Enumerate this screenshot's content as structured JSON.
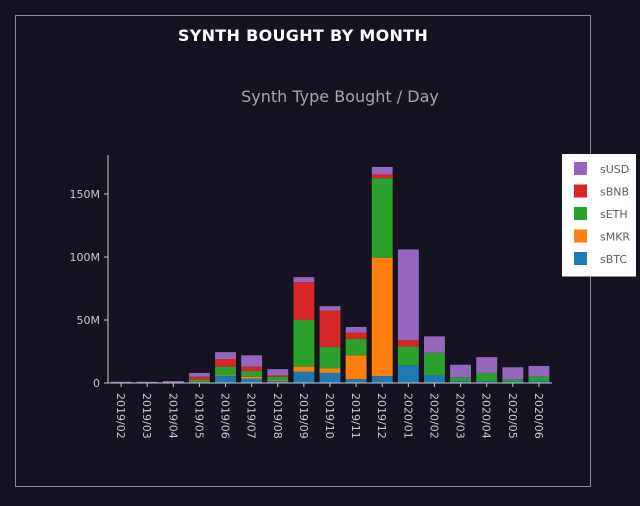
{
  "page": {
    "title": "SYNTH BOUGHT BY MONTH"
  },
  "chart_data": {
    "type": "bar",
    "stacked": true,
    "title": "Synth Type Bought / Day",
    "xlabel": "",
    "ylabel": "",
    "categories": [
      "2019/02",
      "2019/03",
      "2019/04",
      "2019/05",
      "2019/06",
      "2019/07",
      "2019/08",
      "2019/09",
      "2019/10",
      "2019/11",
      "2019/12",
      "2020/01",
      "2020/02",
      "2020/03",
      "2020/04",
      "2020/05",
      "2020/06"
    ],
    "ylim": [
      0,
      180000000
    ],
    "yticks": [
      0,
      50000000,
      100000000,
      150000000
    ],
    "ytick_labels": [
      "0",
      "50M",
      "100M",
      "150M"
    ],
    "grid": false,
    "legend_position": "right",
    "series": [
      {
        "name": "sBTC",
        "color": "#1f77b4",
        "values": [
          0,
          0,
          0,
          1000000,
          5500000,
          3500000,
          1500000,
          9000000,
          8000000,
          3000000,
          5500000,
          14000000,
          6000000,
          1500000,
          1500000,
          1000000,
          1500000
        ]
      },
      {
        "name": "sMKR",
        "color": "#ff7f0e",
        "values": [
          0,
          0,
          0,
          500000,
          500000,
          1500000,
          500000,
          4000000,
          3500000,
          19000000,
          94000000,
          0,
          0,
          0,
          0,
          0,
          0
        ]
      },
      {
        "name": "sETH",
        "color": "#2ca02c",
        "values": [
          0,
          0,
          0,
          1500000,
          7000000,
          4500000,
          3000000,
          37000000,
          17000000,
          13000000,
          63000000,
          15000000,
          18000000,
          3000000,
          6500000,
          2000000,
          3500000
        ]
      },
      {
        "name": "sBNB",
        "color": "#d62728",
        "values": [
          0,
          0,
          0,
          2000000,
          6000000,
          3500000,
          1000000,
          30000000,
          29000000,
          5000000,
          3000000,
          5000000,
          0,
          0,
          0,
          0,
          0
        ]
      },
      {
        "name": "sUSD",
        "color": "#9467bd",
        "values": [
          1000000,
          1000000,
          1500000,
          3000000,
          5500000,
          9000000,
          5000000,
          4000000,
          3500000,
          4500000,
          6000000,
          72000000,
          13000000,
          10000000,
          12500000,
          9500000,
          8500000
        ]
      }
    ],
    "legend_order": [
      "sUSD",
      "sBNB",
      "sETH",
      "sMKR",
      "sBTC"
    ]
  }
}
